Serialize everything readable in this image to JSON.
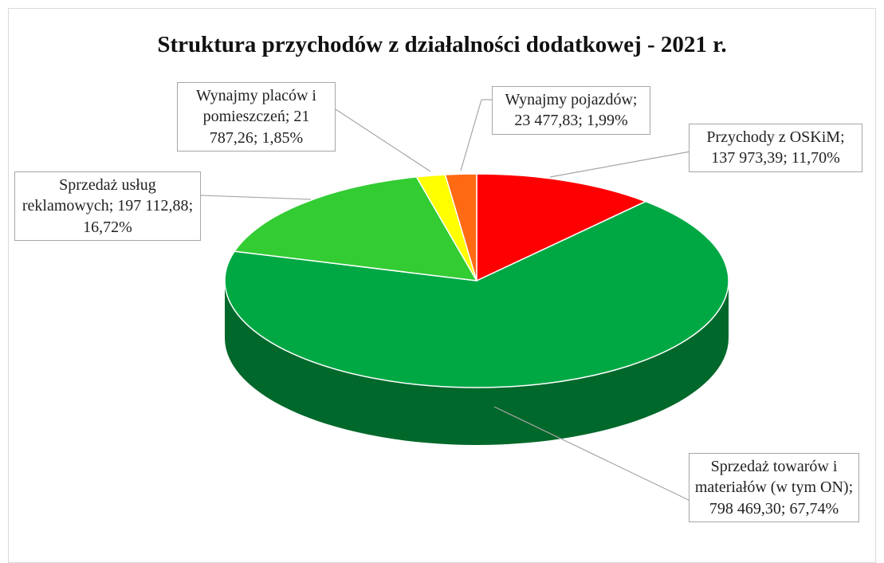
{
  "chart_data": {
    "type": "pie3d",
    "title": "Struktura przychodów z działalności dodatkowej - 2021 r.",
    "label_separator": "; ",
    "categories": [
      "Przychody z OSKiM",
      "Sprzedaż towarów i materiałów (w tym ON)",
      "Sprzedaż usług reklamowych",
      "Wynajmy placów i pomieszczeń",
      "Wynajmy pojazdów"
    ],
    "values": [
      137973.39,
      798469.3,
      197112.88,
      21787.26,
      23477.83
    ],
    "value_labels": [
      "137 973,39",
      "798 469,30",
      "197 112,88",
      "21 787,26",
      "23 477,83"
    ],
    "percents": [
      11.7,
      67.74,
      16.72,
      1.85,
      1.99
    ],
    "percent_labels": [
      "11,70%",
      "67,74%",
      "16,72%",
      "1,85%",
      "1,99%"
    ],
    "colors": [
      "#ff0000",
      "#00a844",
      "#33cc33",
      "#ffff00",
      "#ff6a13"
    ]
  }
}
